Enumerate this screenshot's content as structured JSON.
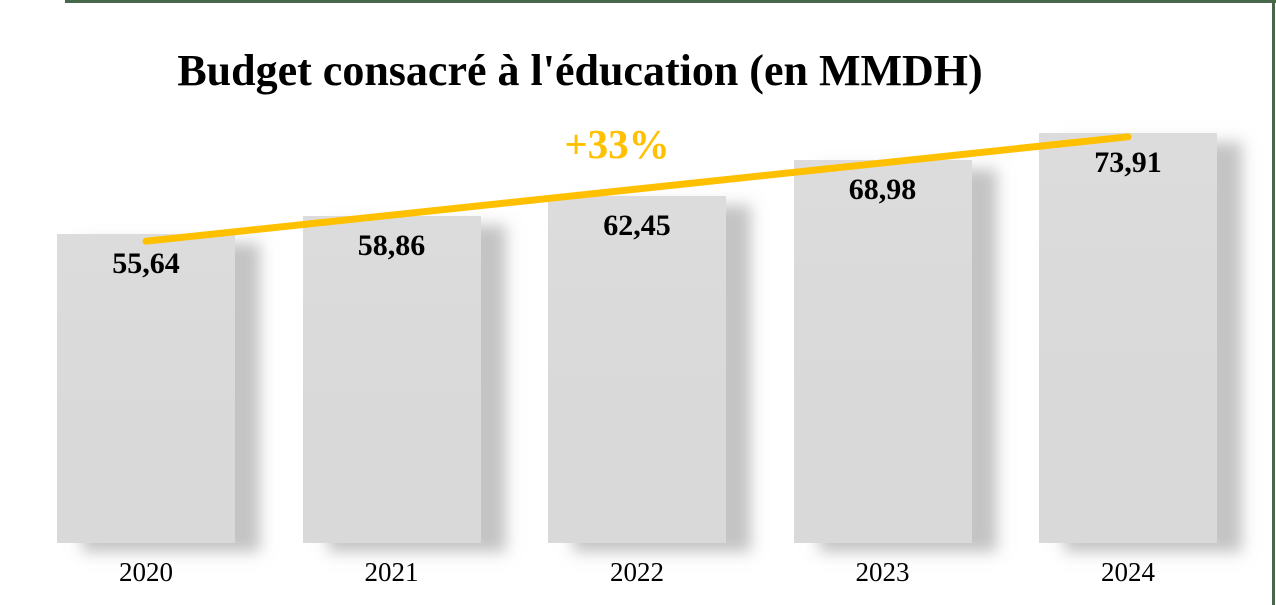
{
  "title": "Budget consacré à l'éducation (en MMDH)",
  "annotation": {
    "label": "+33%"
  },
  "colors": {
    "gold": "#FFC000",
    "green": "#47684B",
    "bar": "#D9D9D9",
    "ink": "#000000",
    "background": "#FFFFFF"
  },
  "chart_data": {
    "type": "bar",
    "title": "Budget consacré à l'éducation (en MMDH)",
    "unit": "MMDH",
    "categories": [
      "2020",
      "2021",
      "2022",
      "2023",
      "2024"
    ],
    "values": [
      55.64,
      58.86,
      62.45,
      68.98,
      73.91
    ],
    "value_labels": [
      "55,64",
      "58,86",
      "62,45",
      "68,98",
      "73,91"
    ],
    "xlabel": "",
    "ylabel": "",
    "baseline_value": 0,
    "y_axis_visible": false,
    "x_axis_visible": false,
    "gridlines": false,
    "legend": false,
    "bar_color": "#D9D9D9",
    "annotations": [
      {
        "type": "trend_line",
        "label": "+33%",
        "color": "#FFC000",
        "from_category": "2020",
        "to_category": "2024"
      }
    ]
  }
}
